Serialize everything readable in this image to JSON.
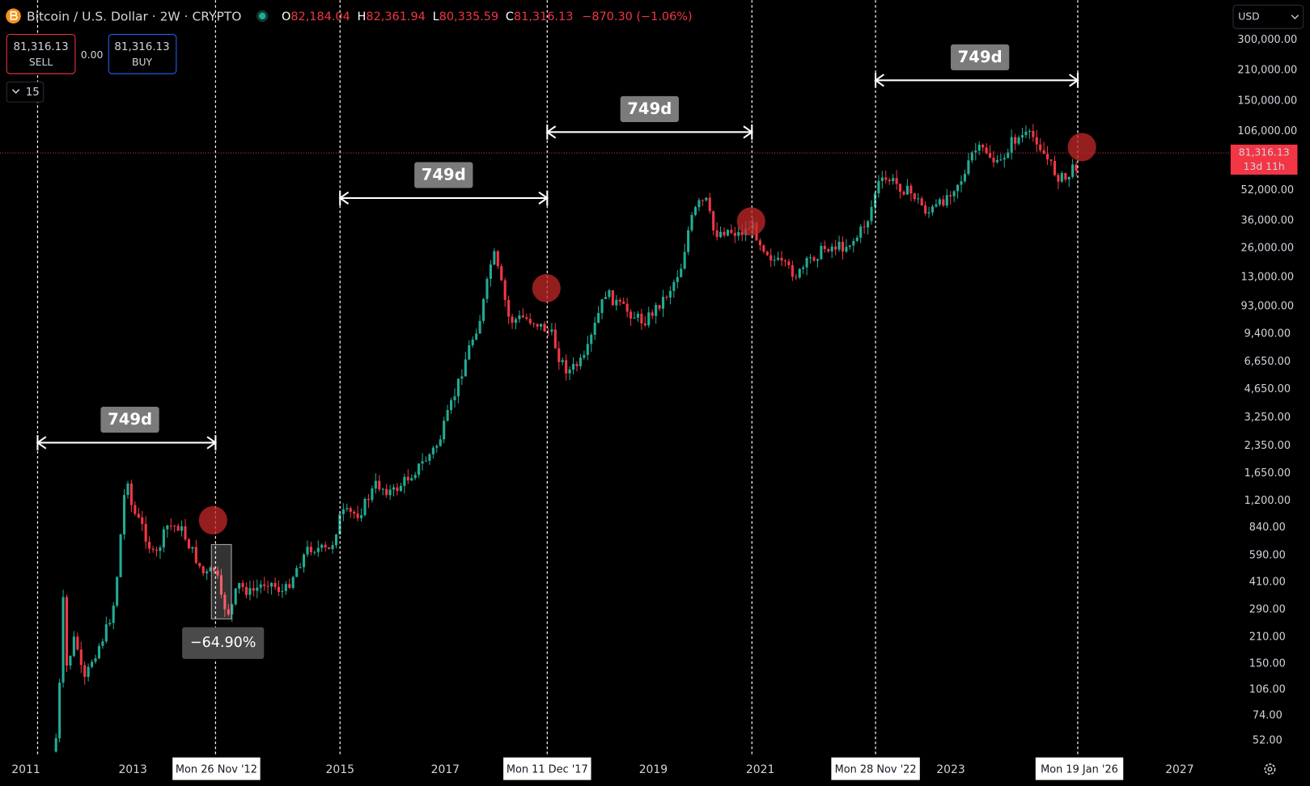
{
  "header": {
    "symbol": "Bitcoin / U.S. Dollar · 2W · CRYPTO",
    "ohlc": [
      {
        "key": "O",
        "value": "82,184.04"
      },
      {
        "key": "H",
        "value": "82,361.94"
      },
      {
        "key": "L",
        "value": "80,335.59"
      },
      {
        "key": "C",
        "value": "81,316.13"
      }
    ],
    "change": "−870.30 (−1.06%)"
  },
  "trade": {
    "sell_price": "81,316.13",
    "sell_label": "SELL",
    "spread": "0.00",
    "buy_price": "81,316.13",
    "buy_label": "BUY"
  },
  "indicators": "15",
  "currency": "USD",
  "price_axis": [
    "300,000.00",
    "210,000.00",
    "150,000.00",
    "106,000.00",
    "52,000.00",
    "36,000.00",
    "26,000.00",
    "13,000.00",
    "93,000.00",
    "9,400.00",
    "6,650.00",
    "4,650.00",
    "3,250.00",
    "2,350.00",
    "1,650.00",
    "1,200.00",
    "840.00",
    "590.00",
    "410.00",
    "290.00",
    "210.00",
    "150.00",
    "106.00",
    "74.00",
    "52.00"
  ],
  "time_axis": [
    "2011",
    "2013",
    "2015",
    "2017",
    "2019",
    "2021",
    "2023",
    "2027"
  ],
  "date_markers": [
    "Mon 26 Nov '12",
    "Mon 11 Dec '17",
    "Mon 28 Nov '22",
    "Mon 19 Jan '26"
  ],
  "price_tag": {
    "price": "81,316.13",
    "countdown": "13d 11h"
  },
  "measurements": [
    "749d",
    "749d",
    "749d",
    "749d"
  ],
  "drawdown": "−64.90%"
}
